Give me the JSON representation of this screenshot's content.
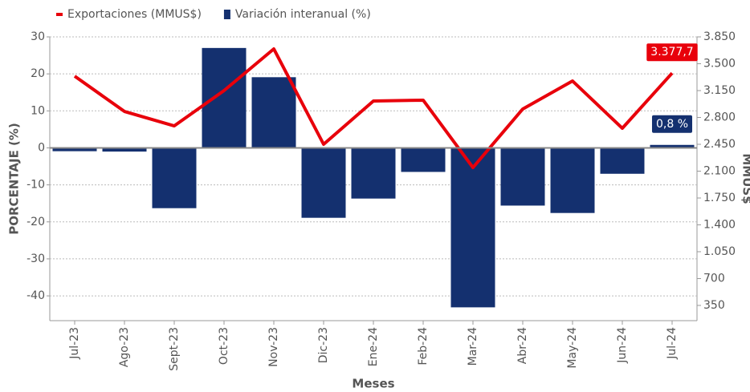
{
  "chart_data": {
    "type": "bar_line",
    "legend": "top",
    "xlabel": "Meses",
    "ylabel": "PORCENTAJE (%)",
    "y2label": "MMUS$",
    "categories": [
      "Jul-23",
      "Ago-23",
      "Sept-23",
      "Oct-23",
      "Nov-23",
      "Dic-23",
      "Ene-24",
      "Feb-24",
      "Mar-24",
      "Abr-24",
      "May-24",
      "Jun-24",
      "Jul-24"
    ],
    "series": [
      {
        "name": "Exportaciones (MMUS$)",
        "type": "line",
        "axis": "y2",
        "color": "#e8000b",
        "values": [
          3338,
          2878,
          2690,
          3150,
          3693,
          2450,
          3014,
          3025,
          2147,
          2910,
          3275,
          2659,
          3377.7
        ],
        "value_labels": [
          null,
          null,
          null,
          null,
          null,
          null,
          null,
          null,
          null,
          null,
          null,
          null,
          "3.377,7"
        ]
      },
      {
        "name": "Variación interanual (%)",
        "type": "bar",
        "axis": "y",
        "color": "#14306f",
        "values": [
          -0.9,
          -1.0,
          -16.3,
          27.0,
          19.1,
          -18.9,
          -13.7,
          -6.5,
          -43.1,
          -15.6,
          -17.6,
          -7.0,
          0.8
        ],
        "value_labels": [
          null,
          null,
          null,
          null,
          null,
          null,
          null,
          null,
          null,
          null,
          null,
          null,
          "0,8 %"
        ]
      }
    ],
    "ylim": [
      -46.7,
      30
    ],
    "yticks": [
      30,
      20,
      10,
      0,
      -10,
      -20,
      -30,
      -40
    ],
    "y2lim": [
      151.5,
      3850
    ],
    "y2ticks": [
      {
        "value": 3850,
        "label": "3.850"
      },
      {
        "value": 3500,
        "label": "3.500"
      },
      {
        "value": 3150,
        "label": "3.150"
      },
      {
        "value": 2800,
        "label": "2.800"
      },
      {
        "value": 2450,
        "label": "2.450"
      },
      {
        "value": 2100,
        "label": "2.100"
      },
      {
        "value": 1750,
        "label": "1.750"
      },
      {
        "value": 1400,
        "label": "1.400"
      },
      {
        "value": 1050,
        "label": "1.050"
      },
      {
        "value": 700,
        "label": "700"
      },
      {
        "value": 350,
        "label": "350"
      }
    ],
    "grid": true
  }
}
